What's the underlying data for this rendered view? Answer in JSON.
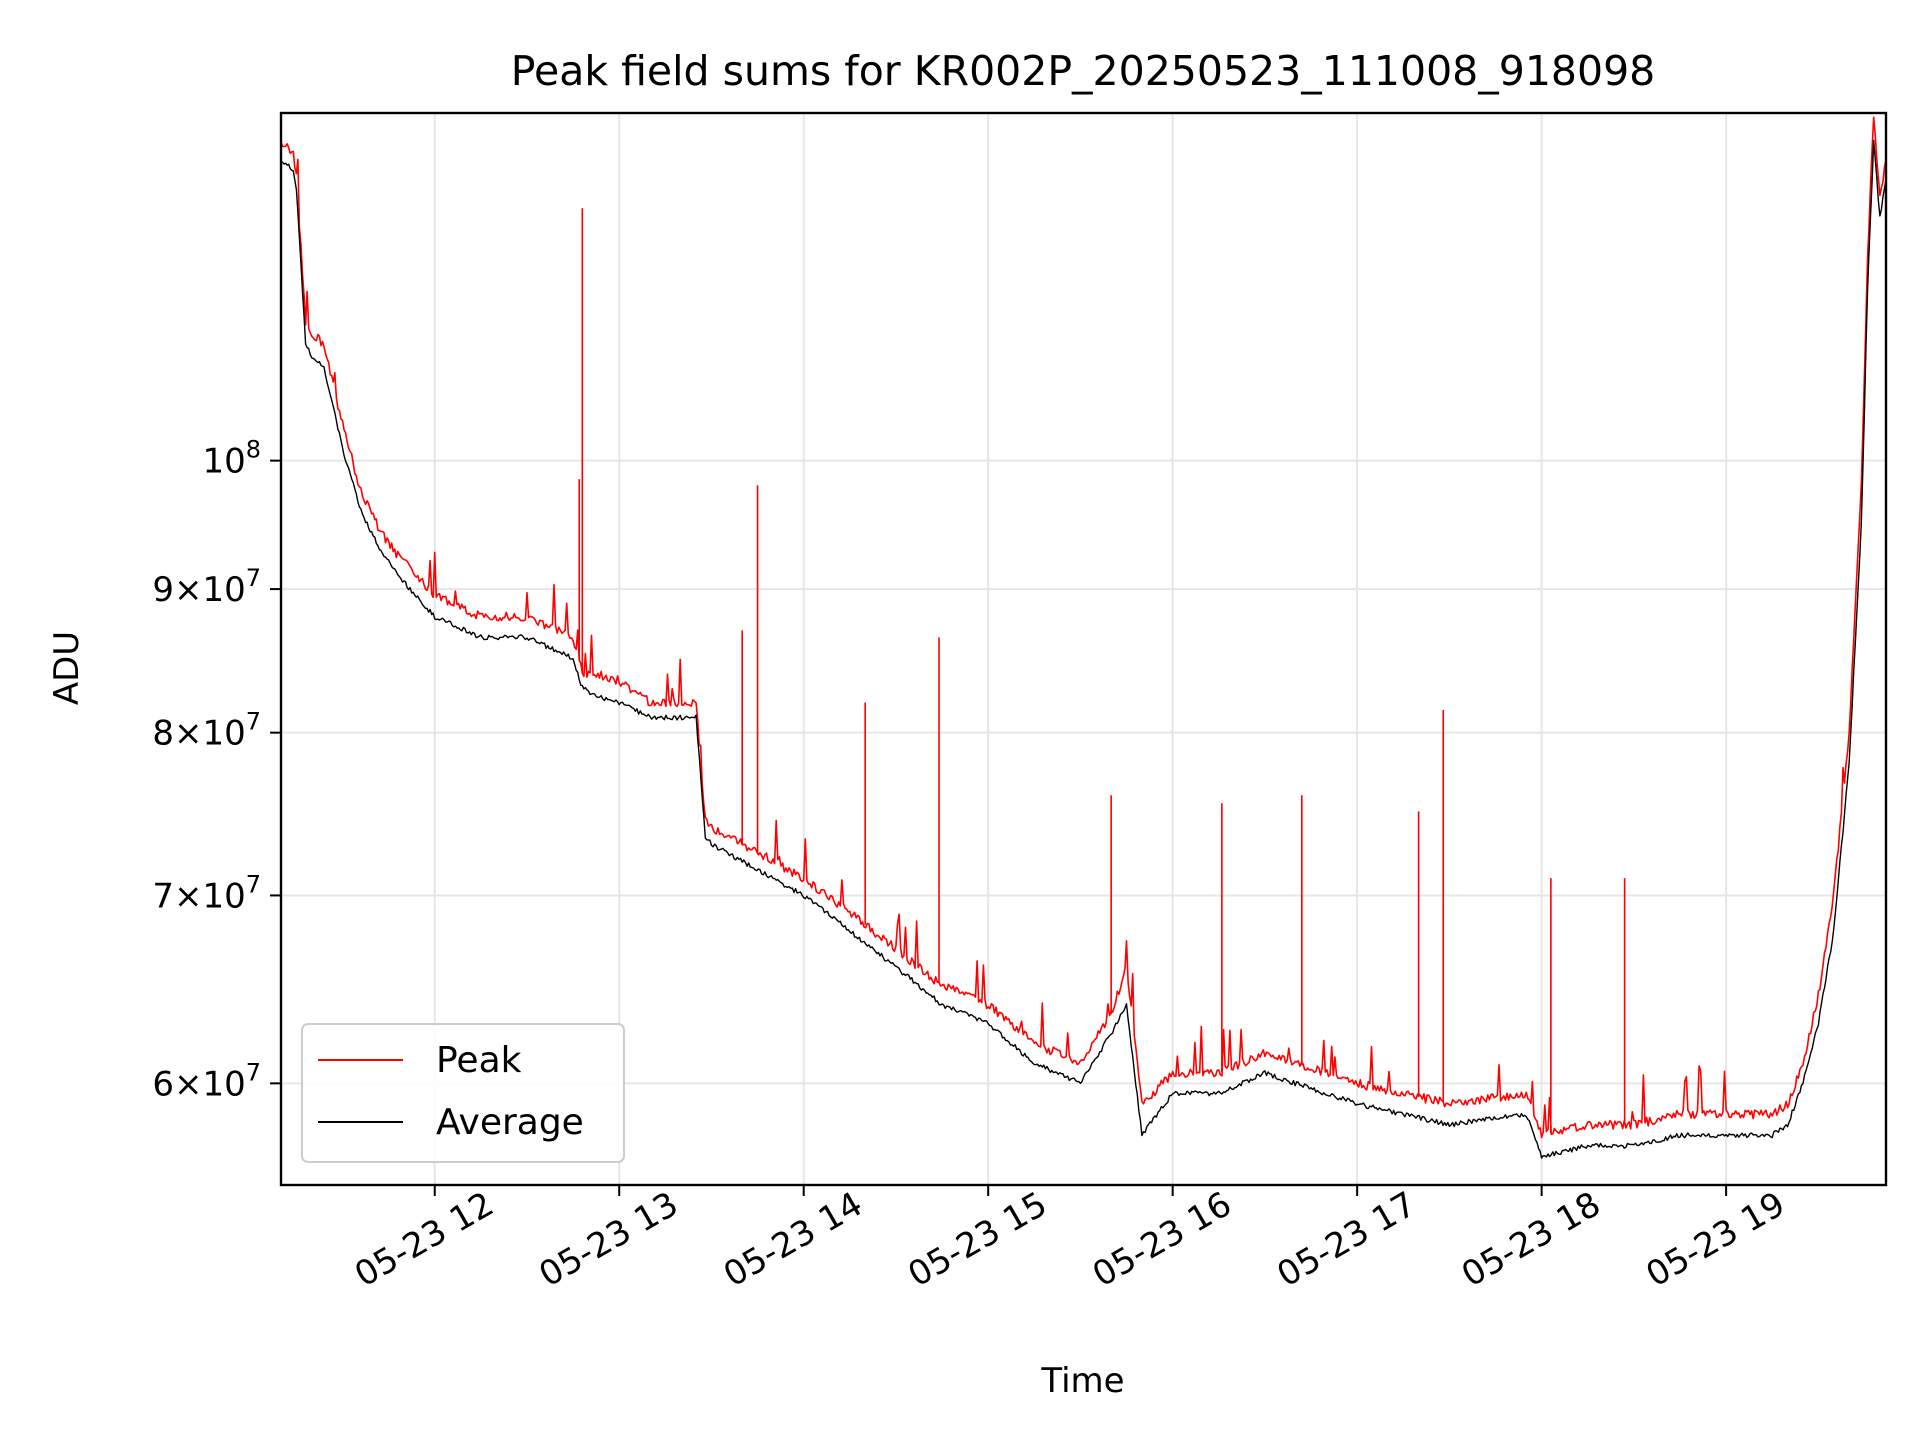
{
  "chart_data": {
    "type": "line",
    "title": "Peak field sums for KR002P_20250523_111008_918098",
    "xlabel": "Time",
    "ylabel": "ADU",
    "yscale": "log",
    "xlim": [
      "2025-05-23T11:10:00",
      "2025-05-23T19:52:00"
    ],
    "ylim": [
      55200000,
      133000000
    ],
    "grid": true,
    "legend": "lower-left",
    "x_ticks": [
      {
        "value": "2025-05-23T12:00",
        "label": "05-23 12"
      },
      {
        "value": "2025-05-23T13:00",
        "label": "05-23 13"
      },
      {
        "value": "2025-05-23T14:00",
        "label": "05-23 14"
      },
      {
        "value": "2025-05-23T15:00",
        "label": "05-23 15"
      },
      {
        "value": "2025-05-23T16:00",
        "label": "05-23 16"
      },
      {
        "value": "2025-05-23T17:00",
        "label": "05-23 17"
      },
      {
        "value": "2025-05-23T18:00",
        "label": "05-23 18"
      },
      {
        "value": "2025-05-23T19:00",
        "label": "05-23 19"
      }
    ],
    "y_ticks": [
      {
        "value": 100000000,
        "base": "10",
        "exp": "8"
      },
      {
        "value": 90000000,
        "base": "9×10",
        "exp": "7"
      },
      {
        "value": 80000000,
        "base": "8×10",
        "exp": "7"
      },
      {
        "value": 70000000,
        "base": "7×10",
        "exp": "7"
      },
      {
        "value": 60000000,
        "base": "6×10",
        "exp": "7"
      }
    ],
    "series": [
      {
        "name": "Average",
        "color": "#000000",
        "x": [
          "2025-05-23T11:10",
          "2025-05-23T11:14",
          "2025-05-23T11:15",
          "2025-05-23T11:18",
          "2025-05-23T11:20",
          "2025-05-23T11:24",
          "2025-05-23T11:30",
          "2025-05-23T11:36",
          "2025-05-23T11:42",
          "2025-05-23T11:48",
          "2025-05-23T11:54",
          "2025-05-23T12:00",
          "2025-05-23T12:15",
          "2025-05-23T12:30",
          "2025-05-23T12:45",
          "2025-05-23T12:48",
          "2025-05-23T12:52",
          "2025-05-23T13:00",
          "2025-05-23T13:10",
          "2025-05-23T13:25",
          "2025-05-23T13:28",
          "2025-05-23T13:30",
          "2025-05-23T13:40",
          "2025-05-23T13:50",
          "2025-05-23T14:00",
          "2025-05-23T14:15",
          "2025-05-23T14:30",
          "2025-05-23T14:45",
          "2025-05-23T15:00",
          "2025-05-23T15:15",
          "2025-05-23T15:30",
          "2025-05-23T15:40",
          "2025-05-23T15:45",
          "2025-05-23T15:50",
          "2025-05-23T16:00",
          "2025-05-23T16:15",
          "2025-05-23T16:30",
          "2025-05-23T17:00",
          "2025-05-23T17:30",
          "2025-05-23T17:55",
          "2025-05-23T18:00",
          "2025-05-23T18:15",
          "2025-05-23T18:30",
          "2025-05-23T18:45",
          "2025-05-23T19:00",
          "2025-05-23T19:15",
          "2025-05-23T19:20",
          "2025-05-23T19:25",
          "2025-05-23T19:30",
          "2025-05-23T19:35",
          "2025-05-23T19:40",
          "2025-05-23T19:44",
          "2025-05-23T19:46",
          "2025-05-23T19:48",
          "2025-05-23T19:50",
          "2025-05-23T19:52"
        ],
        "values": [
          128000000,
          127000000,
          125000000,
          110000000,
          109000000,
          108000000,
          101000000,
          96000000,
          93000000,
          91000000,
          89500000,
          88000000,
          86500000,
          86500000,
          85000000,
          83000000,
          82500000,
          82000000,
          81000000,
          81000000,
          73500000,
          73000000,
          72000000,
          71000000,
          70000000,
          68000000,
          66000000,
          64000000,
          63000000,
          61000000,
          60000000,
          62500000,
          64000000,
          57500000,
          59500000,
          59500000,
          60500000,
          59000000,
          58000000,
          58500000,
          56500000,
          57000000,
          57000000,
          57500000,
          57500000,
          57500000,
          58000000,
          60000000,
          63000000,
          68000000,
          78000000,
          95000000,
          115000000,
          130000000,
          122000000,
          126000000
        ]
      },
      {
        "name": "Peak",
        "color": "#ff0000",
        "x": [
          "2025-05-23T11:10",
          "2025-05-23T11:14",
          "2025-05-23T11:15",
          "2025-05-23T11:18",
          "2025-05-23T11:20",
          "2025-05-23T11:24",
          "2025-05-23T11:30",
          "2025-05-23T11:36",
          "2025-05-23T11:42",
          "2025-05-23T11:48",
          "2025-05-23T11:54",
          "2025-05-23T12:00",
          "2025-05-23T12:15",
          "2025-05-23T12:30",
          "2025-05-23T12:45",
          "2025-05-23T12:48",
          "2025-05-23T12:52",
          "2025-05-23T13:00",
          "2025-05-23T13:10",
          "2025-05-23T13:25",
          "2025-05-23T13:28",
          "2025-05-23T13:30",
          "2025-05-23T13:40",
          "2025-05-23T13:50",
          "2025-05-23T14:00",
          "2025-05-23T14:15",
          "2025-05-23T14:30",
          "2025-05-23T14:45",
          "2025-05-23T15:00",
          "2025-05-23T15:15",
          "2025-05-23T15:30",
          "2025-05-23T15:40",
          "2025-05-23T15:45",
          "2025-05-23T15:50",
          "2025-05-23T16:00",
          "2025-05-23T16:15",
          "2025-05-23T16:30",
          "2025-05-23T17:00",
          "2025-05-23T17:30",
          "2025-05-23T17:55",
          "2025-05-23T18:00",
          "2025-05-23T18:15",
          "2025-05-23T18:30",
          "2025-05-23T18:45",
          "2025-05-23T19:00",
          "2025-05-23T19:15",
          "2025-05-23T19:20",
          "2025-05-23T19:25",
          "2025-05-23T19:30",
          "2025-05-23T19:35",
          "2025-05-23T19:40",
          "2025-05-23T19:44",
          "2025-05-23T19:46",
          "2025-05-23T19:48",
          "2025-05-23T19:50",
          "2025-05-23T19:52"
        ],
        "values": [
          130000000,
          128500000,
          126500000,
          112000000,
          111000000,
          110000000,
          103000000,
          97500000,
          94500000,
          92500000,
          91000000,
          89500000,
          88000000,
          88000000,
          86500000,
          84000000,
          84000000,
          83500000,
          82000000,
          82000000,
          74500000,
          74000000,
          73000000,
          72000000,
          71000000,
          69000000,
          67000000,
          65000000,
          64000000,
          62000000,
          61000000,
          63500000,
          66000000,
          59000000,
          60500000,
          60500000,
          61500000,
          60000000,
          59000000,
          59500000,
          57500000,
          58000000,
          58000000,
          58500000,
          58500000,
          58500000,
          59000000,
          61000000,
          64500000,
          70000000,
          80000000,
          98000000,
          118000000,
          133000000,
          124000000,
          128000000
        ],
        "spikes": [
          {
            "x": "2025-05-23T12:48",
            "value": 123000000
          },
          {
            "x": "2025-05-23T12:47",
            "value": 98500000
          },
          {
            "x": "2025-05-23T13:45",
            "value": 98000000
          },
          {
            "x": "2025-05-23T13:40",
            "value": 87000000
          },
          {
            "x": "2025-05-23T14:44",
            "value": 86500000
          },
          {
            "x": "2025-05-23T14:20",
            "value": 82000000
          },
          {
            "x": "2025-05-23T15:40",
            "value": 76000000
          },
          {
            "x": "2025-05-23T16:16",
            "value": 75500000
          },
          {
            "x": "2025-05-23T16:42",
            "value": 76000000
          },
          {
            "x": "2025-05-23T17:28",
            "value": 81500000
          },
          {
            "x": "2025-05-23T17:20",
            "value": 75000000
          },
          {
            "x": "2025-05-23T18:03",
            "value": 71000000
          },
          {
            "x": "2025-05-23T18:27",
            "value": 71000000
          }
        ]
      }
    ]
  }
}
